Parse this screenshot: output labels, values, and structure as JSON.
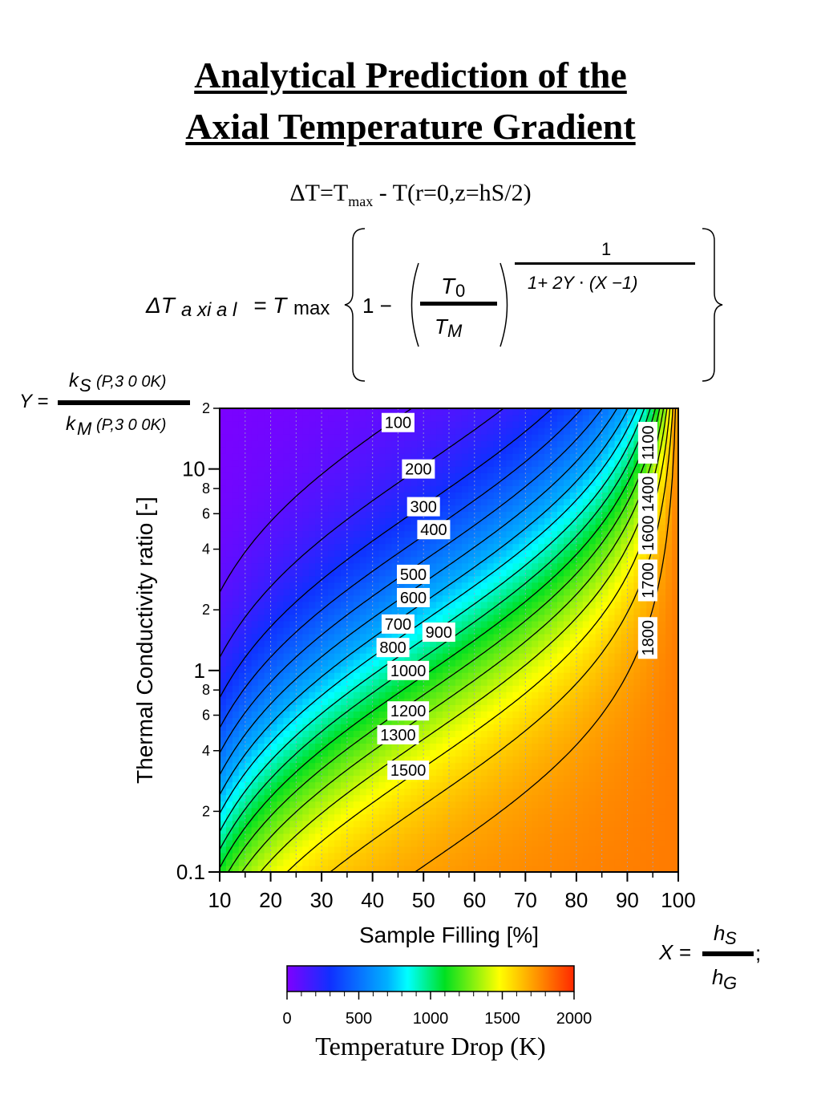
{
  "title": {
    "line1": "Analytical Prediction of the",
    "line2": "Axial Temperature Gradient"
  },
  "delta_t_definition": {
    "prefix": "ΔT=T",
    "sub": "max",
    "suffix": " - T(r=0,z=hS/2)"
  },
  "axial_equation": {
    "lhs": "ΔT",
    "lhs_sub": "a xi a l",
    "eq": "= T",
    "eq_sub": "max",
    "one_minus": "1 −",
    "t0": "T",
    "t0_sub": "0",
    "tm": "T",
    "tm_sub": "M",
    "exp_num": "1",
    "exp_den": "1+ 2Y ⋅ (X −1)"
  },
  "y_equation": {
    "y": "Y =",
    "num": "k",
    "num_sub": "S",
    "num_args": "(P,3 0 0K)",
    "den": "k",
    "den_sub": "M",
    "den_args": "(P,3 0 0K)"
  },
  "x_equation": {
    "x": "X =",
    "num": "h",
    "num_sub": "S",
    "den": "h",
    "den_sub": "G",
    "semicolon": ";"
  },
  "colorbar": {
    "ticks": [
      "0",
      "500",
      "1000",
      "1500",
      "2000"
    ],
    "label": "Temperature Drop (K)",
    "colors": [
      "#7f00ff",
      "#1030ff",
      "#00b0ff",
      "#00ffff",
      "#00e020",
      "#ffff00",
      "#ff9c00",
      "#ff2800"
    ]
  },
  "chart_data": {
    "type": "heatmap",
    "xlabel": "Sample Filling [%]",
    "ylabel": "Thermal Conductivity ratio [-]",
    "xlim": [
      10,
      100
    ],
    "ylim": [
      0.1,
      20
    ],
    "yscale": "log",
    "x_ticks": [
      "10",
      "20",
      "30",
      "40",
      "50",
      "60",
      "70",
      "80",
      "90",
      "100"
    ],
    "y_major_ticks": [
      {
        "v": 0.1,
        "label": "0.1"
      },
      {
        "v": 1,
        "label": "1"
      },
      {
        "v": 10,
        "label": "10"
      }
    ],
    "y_minor_ticks": [
      {
        "v": 0.2,
        "label": "2"
      },
      {
        "v": 0.4,
        "label": "4"
      },
      {
        "v": 0.6,
        "label": "6"
      },
      {
        "v": 0.8,
        "label": "8"
      },
      {
        "v": 2,
        "label": "2"
      },
      {
        "v": 4,
        "label": "4"
      },
      {
        "v": 6,
        "label": "6"
      },
      {
        "v": 8,
        "label": "8"
      },
      {
        "v": 20,
        "label": "2"
      }
    ],
    "color_range": [
      0,
      2000
    ],
    "contour_levels": [
      100,
      200,
      300,
      400,
      500,
      600,
      700,
      800,
      900,
      1000,
      1100,
      1200,
      1300,
      1400,
      1500,
      1600,
      1700,
      1800
    ],
    "contour_labels": [
      {
        "text": "100",
        "x": 45,
        "y": 17
      },
      {
        "text": "200",
        "x": 49,
        "y": 10
      },
      {
        "text": "300",
        "x": 50,
        "y": 6.5
      },
      {
        "text": "400",
        "x": 52,
        "y": 5
      },
      {
        "text": "500",
        "x": 48,
        "y": 3.0
      },
      {
        "text": "600",
        "x": 48,
        "y": 2.3
      },
      {
        "text": "700",
        "x": 45,
        "y": 1.7
      },
      {
        "text": "800",
        "x": 44,
        "y": 1.3
      },
      {
        "text": "900",
        "x": 53,
        "y": 1.55
      },
      {
        "text": "1000",
        "x": 47,
        "y": 1.0
      },
      {
        "text": "1100",
        "x": 94,
        "y": 13.5,
        "vertical": true
      },
      {
        "text": "1200",
        "x": 47,
        "y": 0.63
      },
      {
        "text": "1300",
        "x": 45,
        "y": 0.48
      },
      {
        "text": "1400",
        "x": 94,
        "y": 7.5,
        "vertical": true
      },
      {
        "text": "1500",
        "x": 47,
        "y": 0.32
      },
      {
        "text": "1600",
        "x": 94,
        "y": 4.8,
        "vertical": true
      },
      {
        "text": "1700",
        "x": 94,
        "y": 2.8,
        "vertical": true
      },
      {
        "text": "1800",
        "x": 94,
        "y": 1.45,
        "vertical": true
      }
    ]
  }
}
